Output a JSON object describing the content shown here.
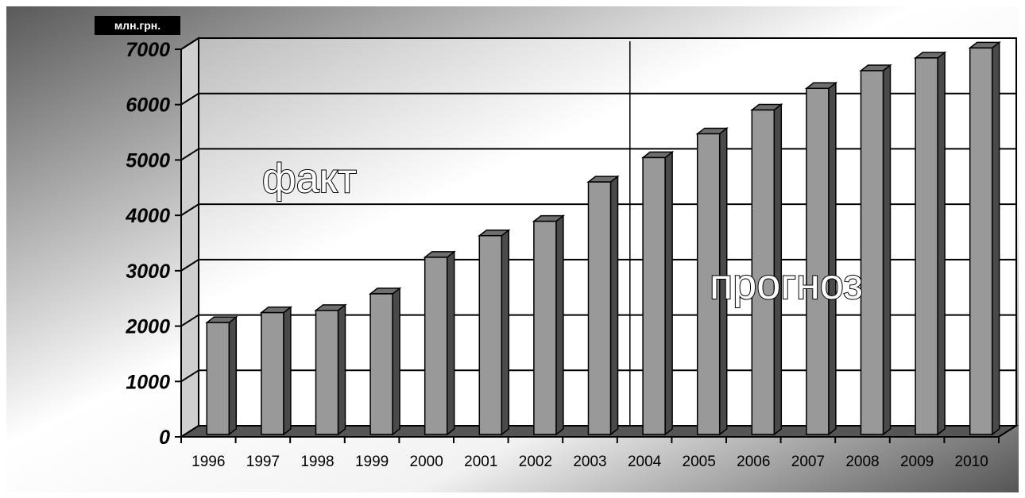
{
  "chart_data": {
    "type": "bar",
    "style": "3d-column",
    "unit_label": "млн.грн.",
    "categories": [
      "1996",
      "1997",
      "1998",
      "1999",
      "2000",
      "2001",
      "2002",
      "2003",
      "2004",
      "2005",
      "2006",
      "2007",
      "2008",
      "2009",
      "2010"
    ],
    "values": [
      2020,
      2200,
      2240,
      2540,
      3200,
      3590,
      3850,
      4560,
      5000,
      5430,
      5860,
      6250,
      6570,
      6800,
      6980
    ],
    "ylim": [
      0,
      7000
    ],
    "yticks": [
      "0",
      "1000",
      "2000",
      "3000",
      "4000",
      "5000",
      "6000",
      "7000"
    ],
    "grid": true,
    "divider_after_category": "2003",
    "annotations": {
      "fact": "факт",
      "forecast": "прогноз"
    },
    "colors": {
      "bar_front": "#999999",
      "bar_side": "#4a4a4a",
      "bar_top": "#6e6e6e",
      "floor": "#555555",
      "wall": "#ffffff"
    }
  }
}
